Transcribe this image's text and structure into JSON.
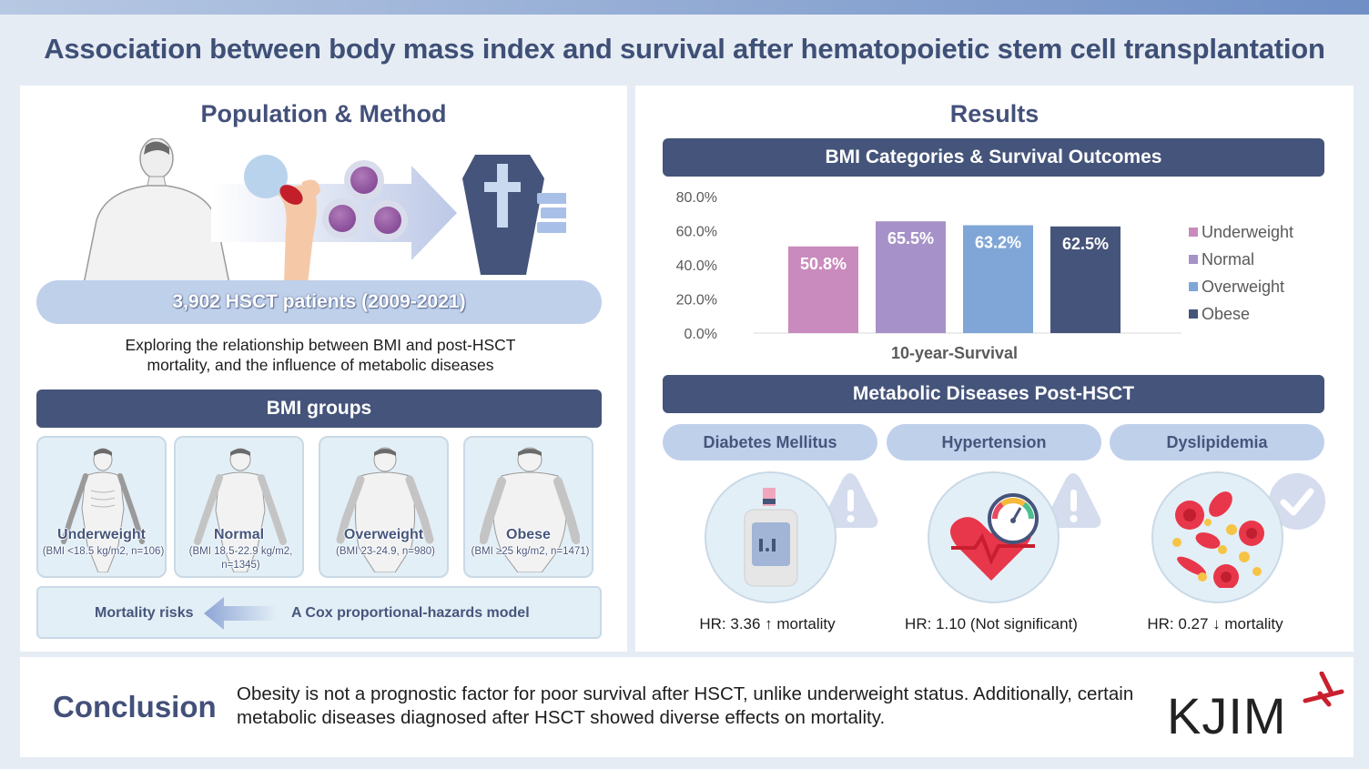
{
  "title": "Association between body mass index and survival after hematopoietic stem cell transplantation",
  "left": {
    "heading": "Population & Method",
    "patients": "3,902 HSCT patients (2009-2021)",
    "description": "Exploring the relationship between BMI and post-HSCT mortality, and the influence of metabolic diseases",
    "bmi_groups_title": "BMI groups",
    "groups": [
      {
        "name": "Underweight",
        "desc": "(BMI <18.5 kg/m2, n=106)"
      },
      {
        "name": "Normal",
        "desc": "(BMI 18.5-22.9 kg/m2, n=1345)"
      },
      {
        "name": "Overweight",
        "desc": "(BMI 23-24.9, n=980)"
      },
      {
        "name": "Obese",
        "desc": "(BMI ≥25 kg/m2, n=1471)"
      }
    ],
    "method": {
      "left_label": "Mortality risks",
      "right_label": "A Cox proportional-hazards model"
    }
  },
  "right": {
    "heading": "Results",
    "chart_title": "BMI Categories & Survival Outcomes",
    "metabolic_title": "Metabolic Diseases Post-HSCT",
    "diseases": [
      {
        "name": "Diabetes Mellitus",
        "hr": "HR: 3.36 ↑ mortality",
        "badge": "warning-icon"
      },
      {
        "name": "Hypertension",
        "hr": "HR: 1.10 (Not significant)",
        "badge": "warning-icon"
      },
      {
        "name": "Dyslipidemia",
        "hr": "HR: 0.27 ↓ mortality",
        "badge": "check-icon"
      }
    ]
  },
  "chart_data": {
    "type": "bar",
    "title": "BMI Categories & Survival Outcomes",
    "categories": [
      "10-year-Survival"
    ],
    "xlabel": "10-year-Survival",
    "ylabel": "",
    "ylim": [
      0,
      80
    ],
    "yticks": [
      "0.0%",
      "20.0%",
      "40.0%",
      "60.0%",
      "80.0%"
    ],
    "legend_position": "right",
    "grid": false,
    "series": [
      {
        "name": "Underweight",
        "values": [
          50.8
        ],
        "label": "50.8%",
        "color": "#c98bbd"
      },
      {
        "name": "Normal",
        "values": [
          65.5
        ],
        "label": "65.5%",
        "color": "#a692c8"
      },
      {
        "name": "Overweight",
        "values": [
          63.2
        ],
        "label": "63.2%",
        "color": "#7fa6d6"
      },
      {
        "name": "Obese",
        "values": [
          62.5
        ],
        "label": "62.5%",
        "color": "#45547a"
      }
    ]
  },
  "conclusion": {
    "heading": "Conclusion",
    "text": "Obesity is not a prognostic factor for poor survival after HSCT, unlike underweight status. Additionally, certain metabolic diseases diagnosed after HSCT showed diverse effects on mortality."
  },
  "logo": {
    "text": "KJIM"
  },
  "colors": {
    "navy": "#45547a",
    "pill": "#bfd0eb",
    "card": "#e3eff6"
  }
}
